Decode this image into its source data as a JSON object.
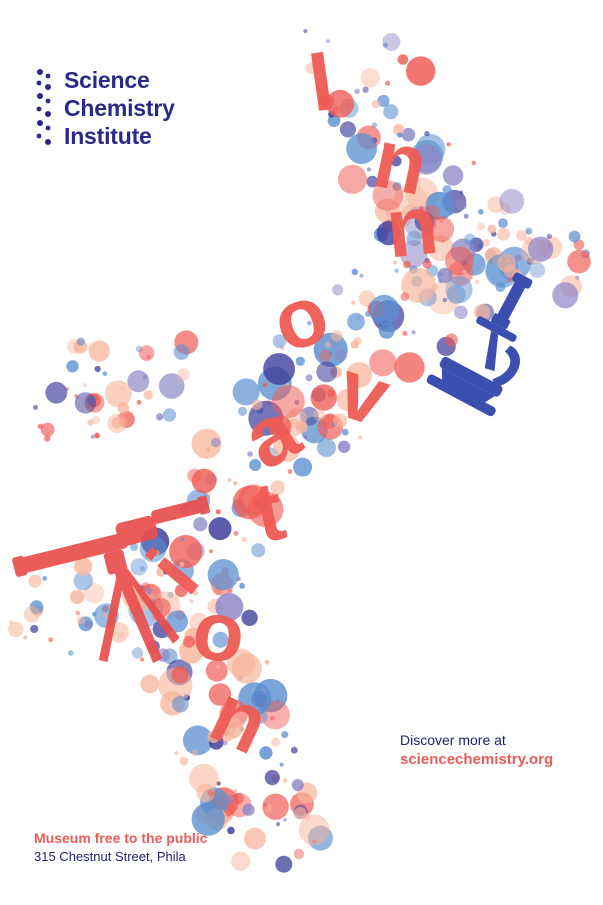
{
  "logo": {
    "icon": "dot-grid-icon",
    "lines": [
      "Science",
      "Chemistry",
      "Institute"
    ],
    "color": "#2a2a86"
  },
  "headline_word": "Innovation",
  "headline_letters": [
    "I",
    "n",
    "n",
    "o",
    "v",
    "a",
    "t",
    "i",
    "o",
    "n"
  ],
  "illustrations": [
    "microscope-icon",
    "telescope-icon"
  ],
  "cta": {
    "lead": "Discover more at",
    "url": "sciencechemistry.org"
  },
  "visit": {
    "headline": "Museum free to the public",
    "address": "315 Chestnut Street, Phila"
  },
  "colors": {
    "coral": "#ef5b55",
    "peach": "#f7b49a",
    "navy": "#3b3b9a",
    "blue": "#5b8fd0",
    "lavender": "#8d86c6",
    "background": "#ffffff"
  }
}
